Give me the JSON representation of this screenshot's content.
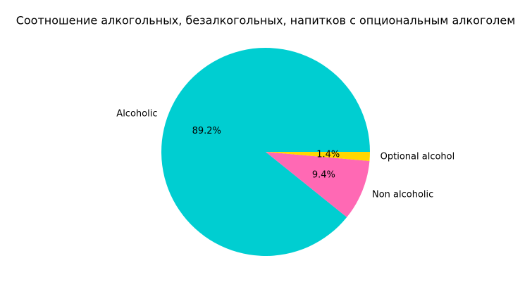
{
  "chart_data": {
    "type": "pie",
    "title": "Соотношение алкогольных, безалкогольных, напитков с опциональным алкоголем",
    "categories": [
      "Alcoholic",
      "Non alcoholic",
      "Optional alcohol"
    ],
    "values": [
      89.2,
      9.4,
      1.4
    ],
    "value_labels": [
      "89.2%",
      "9.4%",
      "1.4%"
    ],
    "colors": [
      "#00ced1",
      "#ff69b4",
      "#ffd700"
    ]
  }
}
